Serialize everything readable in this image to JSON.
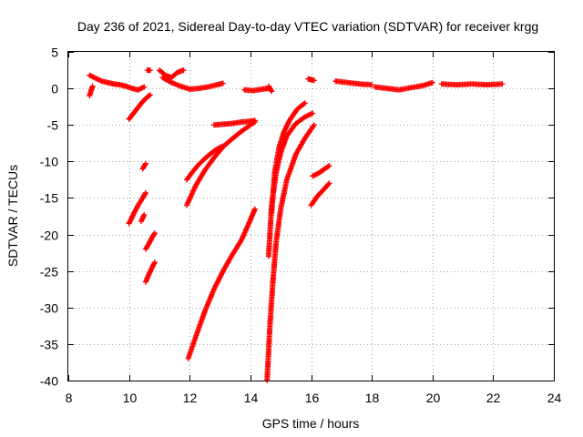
{
  "chart_data": {
    "type": "scatter",
    "title": "Day 236 of 2021, Sidereal Day-to-day VTEC variation (SDTVAR) for receiver krgg",
    "xlabel": "GPS time / hours",
    "ylabel": "SDTVAR / TECUs",
    "xlim": [
      8,
      24
    ],
    "ylim": [
      -40,
      5
    ],
    "xticks": [
      8,
      10,
      12,
      14,
      16,
      18,
      20,
      22,
      24
    ],
    "yticks": [
      5,
      0,
      -5,
      -10,
      -15,
      -20,
      -25,
      -30,
      -35,
      -40
    ],
    "grid": true,
    "marker": "+",
    "color": "#ff0000",
    "series": [
      {
        "name": "s1",
        "x": [
          8.7,
          8.9,
          9.1,
          9.3,
          9.5,
          9.7,
          9.9,
          10.1,
          10.3,
          10.5
        ],
        "y": [
          1.8,
          1.4,
          1.0,
          0.8,
          0.6,
          0.5,
          0.3,
          0.0,
          -0.2,
          0.2
        ]
      },
      {
        "name": "s2",
        "x": [
          8.7,
          8.75,
          8.8
        ],
        "y": [
          -1.0,
          -0.3,
          0.3
        ]
      },
      {
        "name": "s3",
        "x": [
          11.0,
          11.2,
          11.4,
          11.6,
          11.8
        ],
        "y": [
          2.5,
          1.8,
          1.5,
          2.2,
          2.5
        ]
      },
      {
        "name": "s4",
        "x": [
          10.6,
          10.7
        ],
        "y": [
          2.5,
          2.5
        ]
      },
      {
        "name": "s5",
        "x": [
          11.1,
          11.4,
          11.7,
          12.0,
          12.3,
          12.6,
          12.9,
          13.1
        ],
        "y": [
          1.5,
          0.8,
          0.3,
          -0.1,
          0.0,
          0.2,
          0.5,
          0.7
        ]
      },
      {
        "name": "s6",
        "x": [
          13.8,
          14.1,
          14.4,
          14.6
        ],
        "y": [
          -0.2,
          -0.3,
          -0.1,
          0.0
        ]
      },
      {
        "name": "s7",
        "x": [
          10.0,
          10.15,
          10.3,
          10.45,
          10.6,
          10.7
        ],
        "y": [
          -4.2,
          -3.4,
          -2.6,
          -1.8,
          -1.2,
          -0.9
        ]
      },
      {
        "name": "s8",
        "x": [
          10.0,
          10.15,
          10.3,
          10.45,
          10.55
        ],
        "y": [
          -18.5,
          -17.2,
          -16.0,
          -15.0,
          -14.3
        ]
      },
      {
        "name": "s9",
        "x": [
          10.45,
          10.55
        ],
        "y": [
          -11.0,
          -10.3
        ]
      },
      {
        "name": "s10",
        "x": [
          10.4,
          10.5
        ],
        "y": [
          -18.2,
          -17.3
        ]
      },
      {
        "name": "s11",
        "x": [
          10.55,
          10.65,
          10.75,
          10.85
        ],
        "y": [
          -22.0,
          -21.3,
          -20.5,
          -19.8
        ]
      },
      {
        "name": "s12",
        "x": [
          10.55,
          10.65,
          10.75,
          10.85
        ],
        "y": [
          -26.5,
          -25.5,
          -24.6,
          -23.8
        ]
      },
      {
        "name": "s13",
        "x": [
          11.9,
          12.2,
          12.5,
          12.8,
          13.1,
          13.4,
          13.7,
          14.0,
          14.15
        ],
        "y": [
          -16.0,
          -13.3,
          -11.2,
          -9.5,
          -8.0,
          -6.9,
          -5.9,
          -5.0,
          -4.6
        ]
      },
      {
        "name": "s14",
        "x": [
          11.9,
          12.1,
          12.3,
          12.5,
          12.7,
          12.9,
          13.1
        ],
        "y": [
          -12.5,
          -11.4,
          -10.4,
          -9.6,
          -8.9,
          -8.3,
          -7.9
        ]
      },
      {
        "name": "s15",
        "x": [
          12.8,
          13.1,
          13.4,
          13.7,
          14.0,
          14.15
        ],
        "y": [
          -5.0,
          -4.9,
          -4.8,
          -4.6,
          -4.5,
          -4.4
        ]
      },
      {
        "name": "s16",
        "x": [
          11.95,
          12.2,
          12.5,
          12.8,
          13.1,
          13.4,
          13.7,
          14.0,
          14.15
        ],
        "y": [
          -37.0,
          -34.0,
          -30.5,
          -27.5,
          -25.0,
          -22.8,
          -20.8,
          -18.0,
          -16.5
        ]
      },
      {
        "name": "s17",
        "x": [
          14.55,
          14.65,
          14.75,
          14.85,
          15.0,
          15.2,
          15.5,
          15.8,
          16.1
        ],
        "y": [
          -40.0,
          -32.0,
          -26.0,
          -21.0,
          -16.5,
          -12.5,
          -9.0,
          -6.8,
          -5.0
        ]
      },
      {
        "name": "s18",
        "x": [
          14.6,
          14.7,
          14.85,
          15.0,
          15.2,
          15.5,
          15.8,
          16.05
        ],
        "y": [
          -23.0,
          -16.0,
          -11.5,
          -8.8,
          -6.5,
          -4.8,
          -3.9,
          -3.4
        ]
      },
      {
        "name": "s19",
        "x": [
          14.7,
          14.8,
          14.95,
          15.1,
          15.3,
          15.55,
          15.8
        ],
        "y": [
          -17.0,
          -11.5,
          -8.0,
          -6.0,
          -4.3,
          -2.8,
          -2.0
        ]
      },
      {
        "name": "s20",
        "x": [
          16.0,
          16.2,
          16.4,
          16.6
        ],
        "y": [
          -16.0,
          -14.8,
          -13.9,
          -13.0
        ]
      },
      {
        "name": "s21",
        "x": [
          16.05,
          16.25,
          16.45,
          16.6
        ],
        "y": [
          -12.0,
          -11.6,
          -11.0,
          -10.6
        ]
      },
      {
        "name": "s22",
        "x": [
          14.6,
          14.7
        ],
        "y": [
          0.3,
          -0.4
        ]
      },
      {
        "name": "s23",
        "x": [
          15.9,
          16.0,
          16.1
        ],
        "y": [
          1.3,
          1.2,
          1.1
        ]
      },
      {
        "name": "s24",
        "x": [
          16.8,
          17.2,
          17.6,
          18.0
        ],
        "y": [
          1.0,
          0.8,
          0.6,
          0.5
        ]
      },
      {
        "name": "s25",
        "x": [
          18.1,
          18.5,
          18.9,
          19.3,
          19.7,
          20.0
        ],
        "y": [
          0.2,
          0.0,
          -0.2,
          0.1,
          0.4,
          0.8
        ]
      },
      {
        "name": "s26",
        "x": [
          20.3,
          20.8,
          21.3,
          21.8,
          22.3
        ],
        "y": [
          0.6,
          0.5,
          0.6,
          0.5,
          0.6
        ]
      }
    ]
  }
}
